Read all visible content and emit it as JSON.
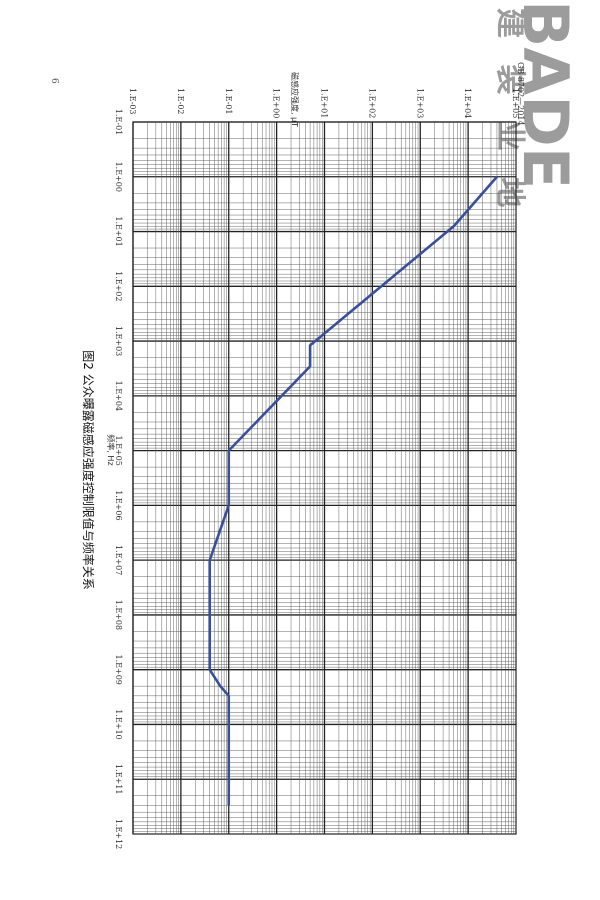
{
  "page": {
    "page_number": "6",
    "standard_number": "GB 8702—2014"
  },
  "watermark": {
    "latin": "BADE",
    "cjk": "建 装 业 地"
  },
  "chart_data": {
    "type": "line",
    "title": "图2 公众曝露磁感应强度控制限值与频率关系",
    "xlabel": "频率, Hz",
    "ylabel": "磁感应强度, μT",
    "x_scale": "log",
    "y_scale": "log",
    "xlim": [
      0.1,
      1000000000000
    ],
    "ylim": [
      0.001,
      100000
    ],
    "x_ticks": [
      "1.E-01",
      "1.E+00",
      "1.E+01",
      "1.E+02",
      "1.E+03",
      "1.E+04",
      "1.E+05",
      "1.E+06",
      "1.E+07",
      "1.E+08",
      "1.E+09",
      "1.E+10",
      "1.E+11",
      "1.E+12"
    ],
    "y_ticks": [
      "1.E-03",
      "1.E-02",
      "1.E-01",
      "1.E+00",
      "1.E+01",
      "1.E+02",
      "1.E+03",
      "1.E+04",
      "1.E+05"
    ],
    "grid": true,
    "series": [
      {
        "color": "#3a4f9a",
        "points": [
          [
            1,
            40000
          ],
          [
            8,
            5000
          ],
          [
            1200,
            5
          ],
          [
            2900,
            5
          ],
          [
            100000,
            0.1
          ],
          [
            1000000,
            0.1
          ],
          [
            10000000,
            0.04
          ],
          [
            1000000000,
            0.04
          ],
          [
            2000000000,
            0.0667
          ],
          [
            3000000000,
            0.1
          ],
          [
            300000000000,
            0.1
          ]
        ]
      }
    ]
  }
}
